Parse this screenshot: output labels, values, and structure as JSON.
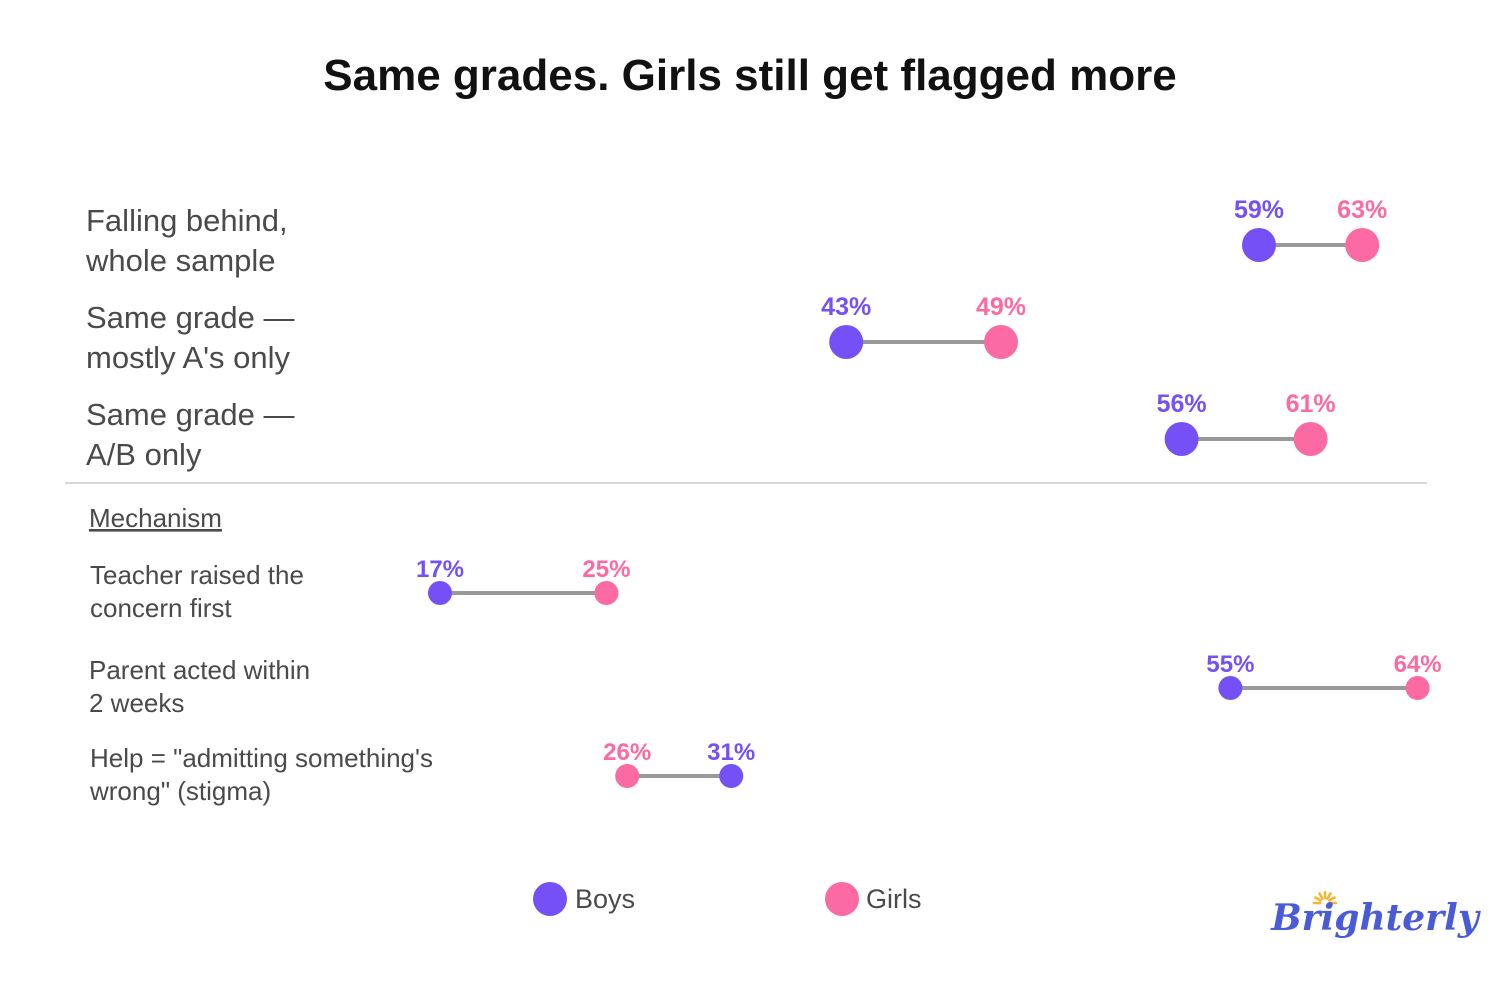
{
  "colors": {
    "boys": "#7650f7",
    "girls": "#fb6aa2",
    "connector": "#999999",
    "divider": "#cccccc",
    "brand": "#4a5bd8",
    "brand_sun": "#f7b52c"
  },
  "chart_data": {
    "type": "dumbbell",
    "title": "Same grades. Girls still get flagged more",
    "section_label": "Mechanism",
    "series": [
      {
        "name": "Boys"
      },
      {
        "name": "Girls"
      }
    ],
    "rows": [
      {
        "label_lines": [
          "Falling behind,",
          "whole sample"
        ],
        "boys": 59,
        "girls": 63,
        "group": "main"
      },
      {
        "label_lines": [
          "Same grade —",
          "mostly A's only"
        ],
        "boys": 43,
        "girls": 49,
        "group": "main"
      },
      {
        "label_lines": [
          "Same grade —",
          "A/B only"
        ],
        "boys": 56,
        "girls": 61,
        "group": "main"
      },
      {
        "label_lines": [
          "Teacher raised the",
          "concern first"
        ],
        "boys": 17,
        "girls": 25,
        "group": "mechanism"
      },
      {
        "label_lines": [
          "Parent acted within",
          "2 weeks"
        ],
        "boys": 55,
        "girls": 64,
        "group": "mechanism"
      },
      {
        "label_lines": [
          "Help = \"admitting something's",
          "wrong\" (stigma)"
        ],
        "boys": 31,
        "girls": 26,
        "group": "mechanism"
      }
    ],
    "value_suffix": "%",
    "legend": [
      "Boys",
      "Girls"
    ],
    "legend_position": "bottom-center"
  },
  "brand": {
    "name": "Brighterly"
  }
}
